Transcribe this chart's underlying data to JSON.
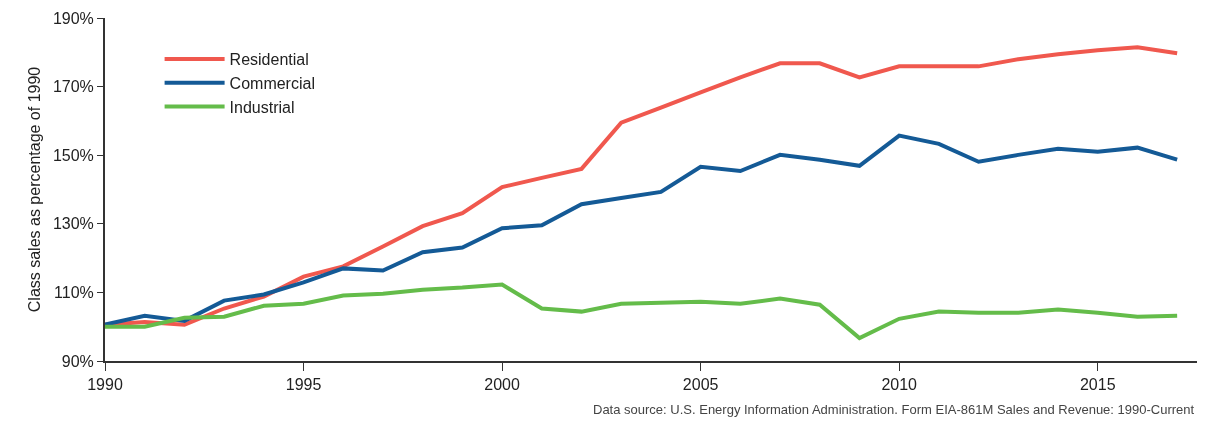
{
  "chart_data": {
    "type": "line",
    "ylabel": "Class sales as percentage of 1990",
    "x": [
      1990,
      1991,
      1992,
      1993,
      1994,
      1995,
      1996,
      1997,
      1998,
      1999,
      2000,
      2001,
      2002,
      2003,
      2004,
      2005,
      2006,
      2007,
      2008,
      2009,
      2010,
      2011,
      2012,
      2013,
      2014,
      2015,
      2016,
      2017
    ],
    "series": [
      {
        "name": "Residential",
        "color": "#f0584e",
        "values": [
          100.6,
          101.4,
          100.6,
          105.3,
          108.8,
          114.6,
          117.6,
          123.4,
          129.3,
          133.1,
          140.7,
          143.4,
          146,
          159.5,
          163.9,
          168.3,
          172.7,
          176.8,
          176.8,
          172.7,
          175.9,
          175.9,
          175.9,
          178,
          179.4,
          180.6,
          181.5,
          179.7
        ]
      },
      {
        "name": "Commercial",
        "color": "#145a96",
        "values": [
          100.6,
          103.2,
          101.7,
          107.6,
          109.4,
          112.9,
          117,
          116.4,
          121.7,
          123.1,
          128.7,
          129.6,
          135.7,
          137.5,
          139.3,
          146.6,
          145.4,
          150.1,
          148.7,
          146.9,
          155.7,
          153.3,
          148.1,
          150.1,
          151.9,
          151,
          152.2,
          148.7
        ]
      },
      {
        "name": "Industrial",
        "color": "#64bc4a",
        "values": [
          100,
          100,
          102.6,
          102.9,
          106.1,
          106.7,
          109.1,
          109.6,
          110.8,
          111.4,
          112.3,
          105.3,
          104.4,
          106.7,
          107,
          107.3,
          106.7,
          108.2,
          106.4,
          96.7,
          102.3,
          104.4,
          104.1,
          104.1,
          105,
          104.1,
          102.9,
          103.2
        ]
      }
    ],
    "xlim": [
      1990,
      2017.5
    ],
    "xticks": [
      1990,
      1995,
      2000,
      2005,
      2010,
      2015
    ],
    "ylim": [
      90,
      190
    ],
    "yticks": [
      {
        "value": 90,
        "label": "90%"
      },
      {
        "value": 110,
        "label": "110%"
      },
      {
        "value": 130,
        "label": "130%"
      },
      {
        "value": 150,
        "label": "150%"
      },
      {
        "value": 170,
        "label": "170%"
      },
      {
        "value": 190,
        "label": "190%"
      }
    ],
    "legend": "top left",
    "marker": "none",
    "line_style": "solid",
    "annotations": [
      "Data source: U.S. Energy Information Administration. Form EIA-861M Sales and Revenue: 1990-Current"
    ]
  }
}
